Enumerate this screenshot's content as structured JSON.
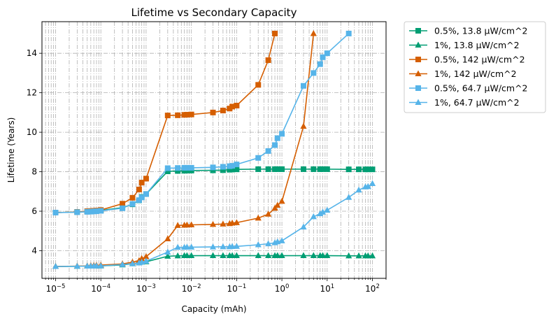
{
  "chart_data": {
    "type": "line",
    "title": "Lifetime vs Secondary Capacity",
    "xlabel": "Capacity (mAh)",
    "ylabel": "Lifetime (Years)",
    "xscale": "log",
    "xlim": [
      5e-06,
      200
    ],
    "ylim": [
      2.6,
      15.6
    ],
    "grid": "dash-dot, x minor and major, y major",
    "legend_position": "outside upper right",
    "x_tick_labels": [
      "10^-5",
      "10^-4",
      "10^-3",
      "10^-2",
      "10^-1",
      "10^0",
      "10^1",
      "10^2"
    ],
    "y_tick_labels": [
      "4",
      "6",
      "8",
      "10",
      "12",
      "14"
    ],
    "series": [
      {
        "name": "0.5%, 13.8 µW/cm^2",
        "color": "#009E73",
        "marker": "square",
        "points": [
          [
            1e-05,
            5.93
          ],
          [
            3e-05,
            5.96
          ],
          [
            5e-05,
            5.98
          ],
          [
            6e-05,
            6.0
          ],
          [
            7e-05,
            6.01
          ],
          [
            8e-05,
            6.02
          ],
          [
            0.0001,
            6.04
          ],
          [
            0.0003,
            6.18
          ],
          [
            0.0005,
            6.35
          ],
          [
            0.0007,
            6.55
          ],
          [
            0.0008,
            6.72
          ],
          [
            0.001,
            6.87
          ],
          [
            0.003,
            8.02
          ],
          [
            0.005,
            8.04
          ],
          [
            0.007,
            8.05
          ],
          [
            0.008,
            8.06
          ],
          [
            0.01,
            8.06
          ],
          [
            0.03,
            8.07
          ],
          [
            0.05,
            8.08
          ],
          [
            0.07,
            8.1
          ],
          [
            0.08,
            8.11
          ],
          [
            0.1,
            8.12
          ],
          [
            0.3,
            8.13
          ],
          [
            0.5,
            8.13
          ],
          [
            0.7,
            8.13
          ],
          [
            0.8,
            8.13
          ],
          [
            1,
            8.13
          ],
          [
            3,
            8.13
          ],
          [
            5,
            8.13
          ],
          [
            7,
            8.13
          ],
          [
            8,
            8.13
          ],
          [
            10,
            8.13
          ],
          [
            30,
            8.12
          ],
          [
            50,
            8.12
          ],
          [
            70,
            8.12
          ],
          [
            80,
            8.12
          ],
          [
            100,
            8.12
          ]
        ]
      },
      {
        "name": "1%, 13.8 µW/cm^2",
        "color": "#009E73",
        "marker": "triangle",
        "points": [
          [
            1e-05,
            3.2
          ],
          [
            3e-05,
            3.21
          ],
          [
            5e-05,
            3.22
          ],
          [
            6e-05,
            3.22
          ],
          [
            7e-05,
            3.22
          ],
          [
            8e-05,
            3.22
          ],
          [
            0.0001,
            3.23
          ],
          [
            0.0003,
            3.28
          ],
          [
            0.0005,
            3.34
          ],
          [
            0.0007,
            3.39
          ],
          [
            0.0008,
            3.42
          ],
          [
            0.001,
            3.44
          ],
          [
            0.003,
            3.72
          ],
          [
            0.005,
            3.74
          ],
          [
            0.007,
            3.75
          ],
          [
            0.008,
            3.75
          ],
          [
            0.01,
            3.75
          ],
          [
            0.03,
            3.75
          ],
          [
            0.05,
            3.75
          ],
          [
            0.07,
            3.75
          ],
          [
            0.08,
            3.75
          ],
          [
            0.1,
            3.75
          ],
          [
            0.3,
            3.75
          ],
          [
            0.5,
            3.75
          ],
          [
            0.7,
            3.75
          ],
          [
            0.8,
            3.75
          ],
          [
            1,
            3.75
          ],
          [
            3,
            3.75
          ],
          [
            5,
            3.75
          ],
          [
            7,
            3.75
          ],
          [
            8,
            3.75
          ],
          [
            10,
            3.75
          ],
          [
            30,
            3.74
          ],
          [
            50,
            3.74
          ],
          [
            70,
            3.74
          ],
          [
            80,
            3.74
          ],
          [
            100,
            3.74
          ]
        ]
      },
      {
        "name": "0.5%, 142 µW/cm^2",
        "color": "#D55E00",
        "marker": "square",
        "points": [
          [
            1e-05,
            5.93
          ],
          [
            3e-05,
            5.96
          ],
          [
            5e-05,
            6.0
          ],
          [
            6e-05,
            6.01
          ],
          [
            7e-05,
            6.02
          ],
          [
            8e-05,
            6.03
          ],
          [
            0.0001,
            6.06
          ],
          [
            0.0003,
            6.38
          ],
          [
            0.0005,
            6.68
          ],
          [
            0.0007,
            7.1
          ],
          [
            0.0008,
            7.45
          ],
          [
            0.001,
            7.65
          ],
          [
            0.003,
            10.85
          ],
          [
            0.005,
            10.86
          ],
          [
            0.007,
            10.88
          ],
          [
            0.008,
            10.89
          ],
          [
            0.01,
            10.9
          ],
          [
            0.03,
            11.0
          ],
          [
            0.05,
            11.1
          ],
          [
            0.07,
            11.2
          ],
          [
            0.08,
            11.3
          ],
          [
            0.1,
            11.35
          ],
          [
            0.3,
            12.4
          ],
          [
            0.5,
            13.65
          ],
          [
            0.7,
            15.0
          ]
        ]
      },
      {
        "name": "1%, 142 µW/cm^2",
        "color": "#D55E00",
        "marker": "triangle",
        "points": [
          [
            1e-05,
            3.2
          ],
          [
            3e-05,
            3.22
          ],
          [
            5e-05,
            3.23
          ],
          [
            6e-05,
            3.24
          ],
          [
            7e-05,
            3.25
          ],
          [
            8e-05,
            3.26
          ],
          [
            0.0001,
            3.27
          ],
          [
            0.0003,
            3.33
          ],
          [
            0.0005,
            3.42
          ],
          [
            0.0007,
            3.5
          ],
          [
            0.0008,
            3.6
          ],
          [
            0.001,
            3.7
          ],
          [
            0.003,
            4.6
          ],
          [
            0.005,
            5.28
          ],
          [
            0.007,
            5.29
          ],
          [
            0.008,
            5.3
          ],
          [
            0.01,
            5.31
          ],
          [
            0.03,
            5.33
          ],
          [
            0.05,
            5.35
          ],
          [
            0.07,
            5.37
          ],
          [
            0.08,
            5.4
          ],
          [
            0.1,
            5.42
          ],
          [
            0.3,
            5.65
          ],
          [
            0.5,
            5.85
          ],
          [
            0.7,
            6.15
          ],
          [
            0.8,
            6.3
          ],
          [
            1,
            6.5
          ],
          [
            3,
            10.3
          ],
          [
            5,
            15.0
          ]
        ]
      },
      {
        "name": "0.5%, 64.7 µW/cm^2",
        "color": "#56B4E9",
        "marker": "square",
        "points": [
          [
            1e-05,
            5.93
          ],
          [
            3e-05,
            5.95
          ],
          [
            5e-05,
            5.97
          ],
          [
            6e-05,
            5.98
          ],
          [
            7e-05,
            5.99
          ],
          [
            8e-05,
            6.0
          ],
          [
            0.0001,
            6.02
          ],
          [
            0.0003,
            6.15
          ],
          [
            0.0005,
            6.37
          ],
          [
            0.0007,
            6.56
          ],
          [
            0.0008,
            6.7
          ],
          [
            0.001,
            6.87
          ],
          [
            0.003,
            8.18
          ],
          [
            0.005,
            8.19
          ],
          [
            0.007,
            8.2
          ],
          [
            0.008,
            8.2
          ],
          [
            0.01,
            8.2
          ],
          [
            0.03,
            8.22
          ],
          [
            0.05,
            8.25
          ],
          [
            0.07,
            8.28
          ],
          [
            0.08,
            8.3
          ],
          [
            0.1,
            8.37
          ],
          [
            0.3,
            8.7
          ],
          [
            0.5,
            9.05
          ],
          [
            0.7,
            9.35
          ],
          [
            0.8,
            9.7
          ],
          [
            1,
            9.92
          ],
          [
            3,
            12.35
          ],
          [
            5,
            13.0
          ],
          [
            7,
            13.45
          ],
          [
            8,
            13.8
          ],
          [
            10,
            14.0
          ],
          [
            30,
            15.0
          ]
        ]
      },
      {
        "name": "1%, 64.7 µW/cm^2",
        "color": "#56B4E9",
        "marker": "triangle",
        "points": [
          [
            1e-05,
            3.2
          ],
          [
            3e-05,
            3.21
          ],
          [
            5e-05,
            3.22
          ],
          [
            6e-05,
            3.22
          ],
          [
            7e-05,
            3.22
          ],
          [
            8e-05,
            3.23
          ],
          [
            0.0001,
            3.23
          ],
          [
            0.0003,
            3.3
          ],
          [
            0.0005,
            3.34
          ],
          [
            0.0007,
            3.38
          ],
          [
            0.0008,
            3.42
          ],
          [
            0.001,
            3.47
          ],
          [
            0.003,
            3.93
          ],
          [
            0.005,
            4.17
          ],
          [
            0.007,
            4.17
          ],
          [
            0.008,
            4.18
          ],
          [
            0.01,
            4.18
          ],
          [
            0.03,
            4.19
          ],
          [
            0.05,
            4.2
          ],
          [
            0.07,
            4.2
          ],
          [
            0.08,
            4.21
          ],
          [
            0.1,
            4.22
          ],
          [
            0.3,
            4.3
          ],
          [
            0.5,
            4.35
          ],
          [
            0.7,
            4.4
          ],
          [
            0.8,
            4.45
          ],
          [
            1,
            4.5
          ],
          [
            3,
            5.2
          ],
          [
            5,
            5.72
          ],
          [
            7,
            5.87
          ],
          [
            8,
            5.95
          ],
          [
            10,
            6.05
          ],
          [
            30,
            6.7
          ],
          [
            50,
            7.07
          ],
          [
            70,
            7.23
          ],
          [
            80,
            7.25
          ],
          [
            100,
            7.4
          ]
        ]
      }
    ]
  }
}
